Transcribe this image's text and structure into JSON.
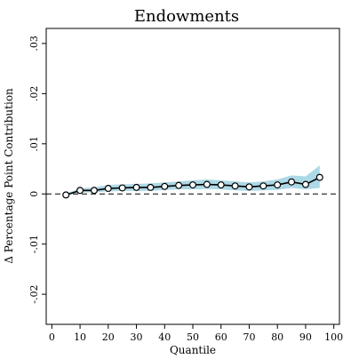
{
  "chart_data": {
    "type": "line",
    "title": "Endowments",
    "xlabel": "Quantile",
    "ylabel": "Δ Percentage Point Contribution",
    "xlim": [
      -2,
      102
    ],
    "ylim": [
      -0.026,
      0.033
    ],
    "x_ticks": [
      0,
      10,
      20,
      30,
      40,
      50,
      60,
      70,
      80,
      90,
      100
    ],
    "x_tick_labels": [
      "0",
      "10",
      "20",
      "30",
      "40",
      "50",
      "60",
      "70",
      "80",
      "90",
      "100"
    ],
    "y_ticks": [
      -0.02,
      -0.01,
      0,
      0.01,
      0.02,
      0.03
    ],
    "y_tick_labels": [
      "-.02",
      "-.01",
      "0",
      ".01",
      ".02",
      ".03"
    ],
    "reference_line": 0,
    "grid": false,
    "legend": "none",
    "colors": {
      "band": "#add8e6",
      "line": "#000000",
      "marker_fill": "#ffffff"
    },
    "series": [
      {
        "x": [
          5,
          10,
          15,
          20,
          25,
          30,
          35,
          40,
          45,
          50,
          55,
          60,
          65,
          70,
          75,
          80,
          85,
          90,
          95
        ],
        "values": [
          -0.0002,
          0.0007,
          0.0007,
          0.0011,
          0.0012,
          0.0013,
          0.0013,
          0.0015,
          0.0017,
          0.0018,
          0.0019,
          0.0018,
          0.0016,
          0.0014,
          0.0016,
          0.0018,
          0.0024,
          0.0019,
          0.0033
        ],
        "ci_lower": [
          -0.0004,
          0.0003,
          0.0003,
          0.0005,
          0.0006,
          0.0006,
          0.0006,
          0.0008,
          0.0009,
          0.0009,
          0.001,
          0.0009,
          0.0007,
          0.0006,
          0.0007,
          0.0008,
          0.0012,
          0.0009,
          0.0012
        ],
        "ci_upper": [
          0.0001,
          0.0011,
          0.0013,
          0.0018,
          0.0019,
          0.002,
          0.0021,
          0.0023,
          0.0025,
          0.0027,
          0.0029,
          0.0027,
          0.0025,
          0.0023,
          0.0025,
          0.0029,
          0.0037,
          0.0035,
          0.0057
        ]
      }
    ]
  }
}
